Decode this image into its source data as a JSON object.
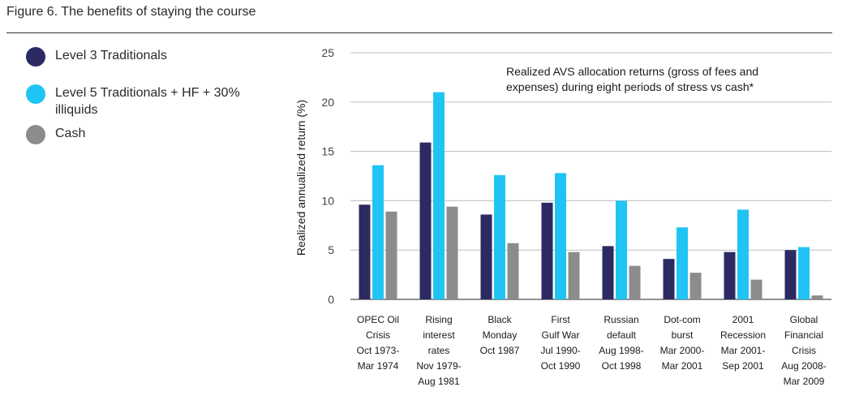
{
  "figure_title": "Figure 6. The benefits of staying the course",
  "chart_data": {
    "type": "bar",
    "title": "",
    "ylabel": "Realized annualized return (%)",
    "xlabel": "",
    "ylim": [
      0,
      25
    ],
    "yticks": [
      0,
      5,
      10,
      15,
      20,
      25
    ],
    "grid": true,
    "legend_placement": "left",
    "annotation": [
      "Realized AVS allocation returns (gross of fees and",
      "expenses) during eight periods of stress vs cash*"
    ],
    "categories": [
      [
        "OPEC Oil",
        "Crisis",
        "Oct 1973-",
        "Mar 1974"
      ],
      [
        "Rising",
        "interest",
        "rates",
        "Nov 1979-",
        "Aug 1981"
      ],
      [
        "Black",
        "Monday",
        "Oct 1987"
      ],
      [
        "First",
        "Gulf War",
        "Jul 1990-",
        "Oct 1990"
      ],
      [
        "Russian",
        "default",
        "Aug 1998-",
        "Oct 1998"
      ],
      [
        "Dot-com",
        "burst",
        "Mar 2000-",
        "Mar 2001"
      ],
      [
        "2001",
        "Recession",
        "Mar 2001-",
        "Sep 2001"
      ],
      [
        "Global",
        "Financial",
        "Crisis",
        "Aug 2008-",
        "Mar 2009"
      ]
    ],
    "series": [
      {
        "name": [
          "Level 3 Traditionals"
        ],
        "color": "#2b2a63",
        "values": [
          9.6,
          15.9,
          8.6,
          9.8,
          5.4,
          4.1,
          4.8,
          5.0
        ]
      },
      {
        "name": [
          "Level 5 Traditionals + HF + 30%",
          "illiquids"
        ],
        "color": "#20c4f4",
        "values": [
          13.6,
          21.0,
          12.6,
          12.8,
          10.0,
          7.3,
          9.1,
          5.3
        ]
      },
      {
        "name": [
          "Cash"
        ],
        "color": "#8c8c8c",
        "values": [
          8.9,
          9.4,
          5.7,
          4.8,
          3.4,
          2.7,
          2.0,
          0.4
        ]
      }
    ]
  }
}
